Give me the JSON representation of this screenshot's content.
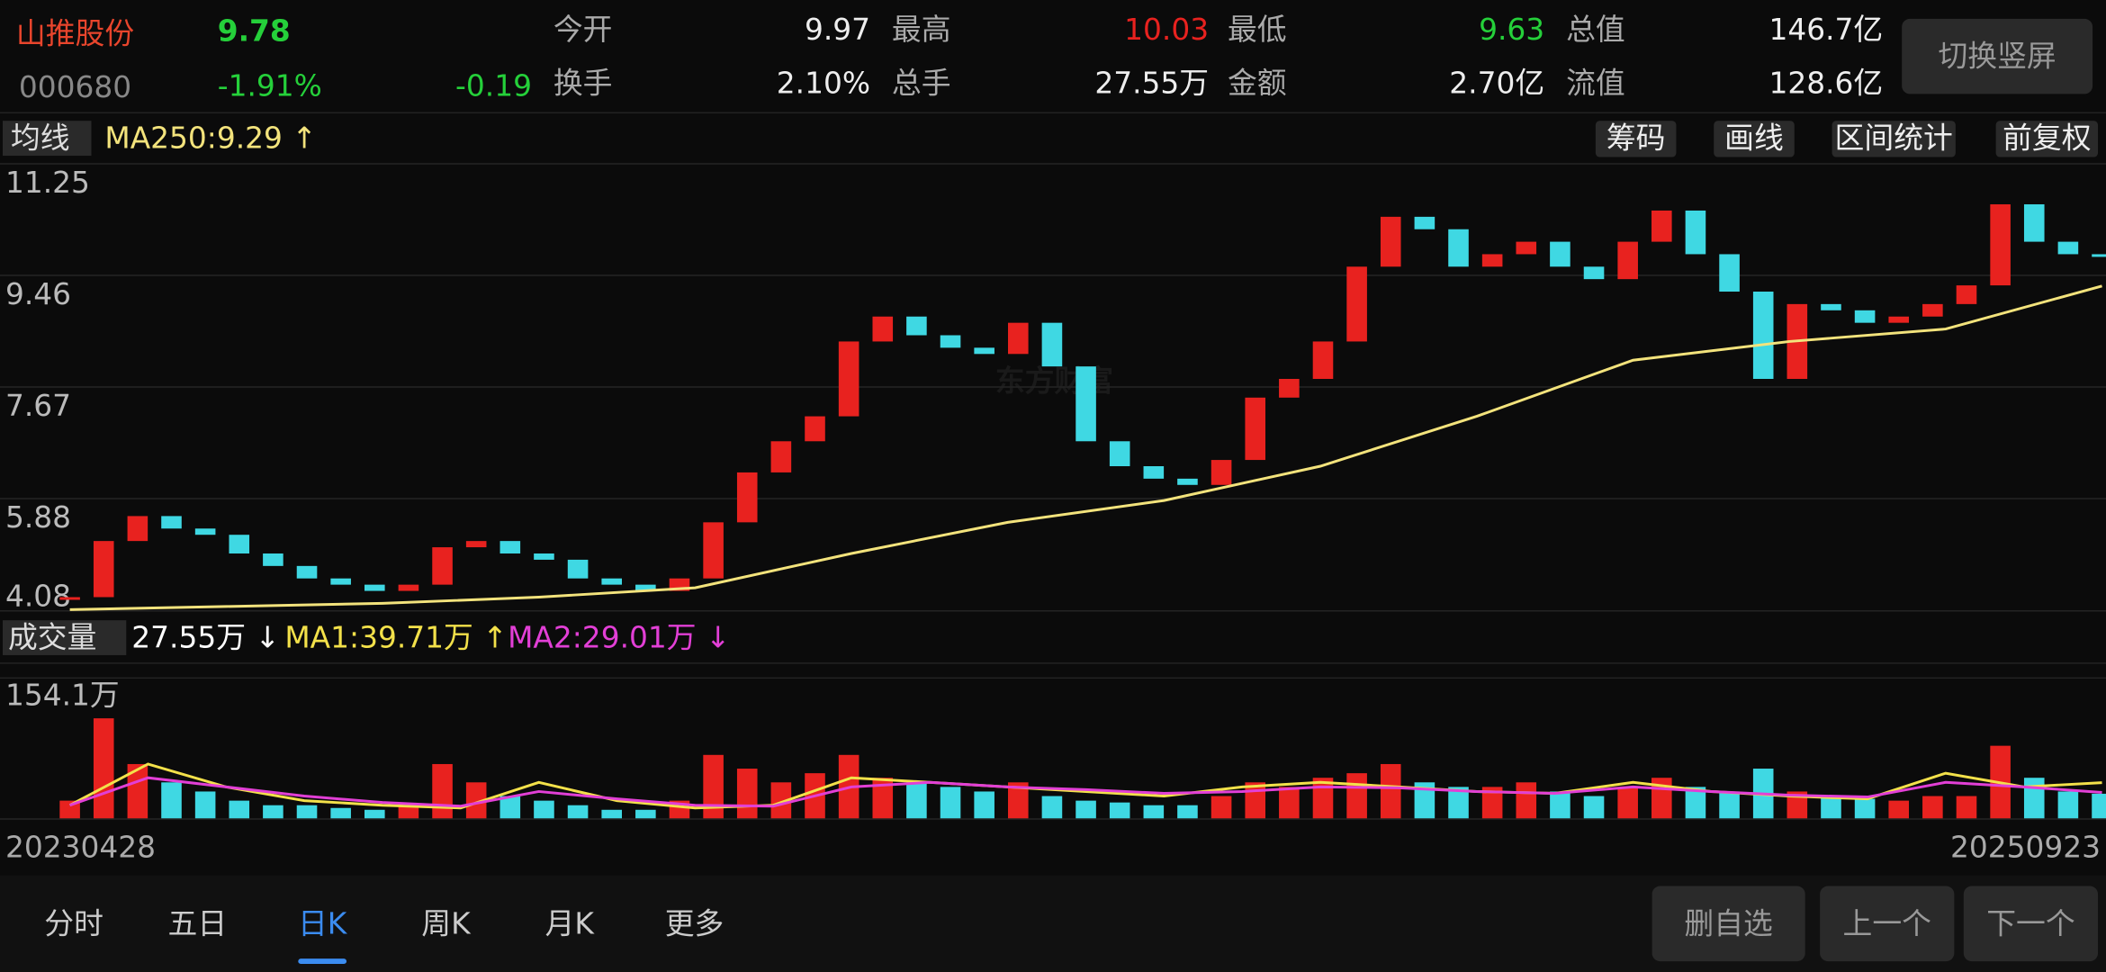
{
  "header": {
    "name": "山推股份",
    "price": "9.78",
    "code": "000680",
    "change_pct": "-1.91%",
    "change": "-0.19",
    "stats": [
      [
        "今开",
        "9.97"
      ],
      [
        "最高",
        "10.03"
      ],
      [
        "最低",
        "9.63"
      ],
      [
        "总值",
        "146.7亿"
      ],
      [
        "换手",
        "2.10%"
      ],
      [
        "总手",
        "27.55万"
      ],
      [
        "金额",
        "2.70亿"
      ],
      [
        "流值",
        "128.6亿"
      ]
    ],
    "rotate_button": "切换竖屏"
  },
  "toolbar": {
    "indicator": "均线",
    "ma250": "MA250:9.29 ↑",
    "buttons": [
      "筹码",
      "画线",
      "区间统计",
      "前复权"
    ]
  },
  "watermark": "东方财富",
  "kline": {
    "ylim": [
      4.08,
      11.25
    ],
    "yticks": [
      11.25,
      9.46,
      7.67,
      5.88,
      4.08
    ],
    "closes": [
      4.3,
      5.2,
      5.6,
      5.4,
      5.3,
      5.0,
      4.8,
      4.6,
      4.5,
      4.4,
      4.5,
      5.1,
      5.2,
      5.0,
      4.9,
      4.6,
      4.5,
      4.4,
      4.6,
      5.5,
      6.3,
      6.8,
      7.2,
      8.4,
      8.8,
      8.5,
      8.3,
      8.2,
      8.7,
      8.0,
      6.8,
      6.4,
      6.2,
      6.1,
      6.5,
      7.5,
      7.8,
      8.4,
      9.6,
      10.4,
      10.2,
      9.6,
      9.8,
      10.0,
      9.6,
      9.4,
      10.0,
      10.5,
      9.8,
      9.2,
      7.8,
      9.0,
      8.9,
      8.7,
      8.8,
      9.0,
      9.3,
      10.6,
      10.0,
      9.8,
      9.78
    ],
    "ma250": [
      4.1,
      4.15,
      4.2,
      4.3,
      4.45,
      5.0,
      5.5,
      5.85,
      6.4,
      7.2,
      8.1,
      8.4,
      8.6,
      9.29
    ],
    "up_color": "#e8221f",
    "down_color": "#3fd8e3",
    "ma_color": "#f3e37c"
  },
  "volume": {
    "indicator": "成交量",
    "current": "27.55万 ↓",
    "ma1": "MA1:39.71万 ↑",
    "ma2": "MA2:29.01万 ↓",
    "ylim": [
      0,
      154.1
    ],
    "yticks": [
      {
        "value": 154.1,
        "label": "154.1万"
      }
    ],
    "values": [
      20,
      110,
      60,
      40,
      30,
      20,
      15,
      15,
      12,
      10,
      15,
      60,
      40,
      25,
      20,
      15,
      10,
      10,
      20,
      70,
      55,
      40,
      50,
      70,
      45,
      40,
      35,
      30,
      40,
      25,
      20,
      18,
      15,
      15,
      25,
      40,
      35,
      45,
      50,
      60,
      40,
      35,
      35,
      40,
      30,
      25,
      35,
      45,
      35,
      30,
      55,
      30,
      25,
      22,
      20,
      25,
      25,
      80,
      45,
      30,
      27.55
    ],
    "ma1_values": [
      15,
      60,
      35,
      20,
      15,
      12,
      40,
      20,
      12,
      15,
      45,
      40,
      35,
      30,
      25,
      35,
      40,
      35,
      30,
      28,
      40,
      30,
      25,
      22,
      50,
      35,
      39.71
    ],
    "ma2_values": [
      15,
      45,
      35,
      25,
      18,
      14,
      30,
      22,
      15,
      14,
      35,
      40,
      35,
      32,
      28,
      30,
      35,
      34,
      30,
      28,
      35,
      30,
      26,
      24,
      40,
      35,
      29.01
    ],
    "ma1_color": "#f3e14a",
    "ma2_color": "#e23fd6"
  },
  "dates": [
    "20230428",
    "20250923"
  ],
  "tabs": [
    "分时",
    "五日",
    "日K",
    "周K",
    "月K",
    "更多"
  ],
  "active_tab": 2,
  "actions": [
    "删自选",
    "上一个",
    "下一个"
  ]
}
